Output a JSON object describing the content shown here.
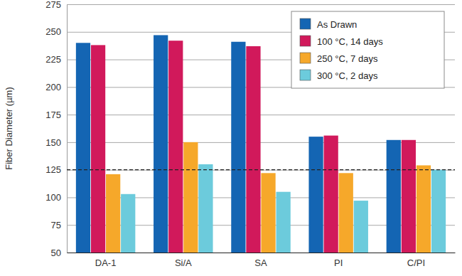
{
  "chart_data": {
    "type": "bar",
    "y_label": "Fiber Diameter (µm)",
    "categories": [
      "DA-1",
      "Si/A",
      "SA",
      "PI",
      "C/PI"
    ],
    "series": [
      {
        "name": "As Drawn",
        "color": "#1465b3",
        "values": [
          240,
          247,
          241,
          155,
          152
        ]
      },
      {
        "name": "100 °C, 14 days",
        "color": "#d1195b",
        "values": [
          238,
          242,
          237,
          156,
          152
        ]
      },
      {
        "name": "250 °C, 7 days",
        "color": "#f6a82a",
        "values": [
          121,
          150,
          122,
          122,
          129
        ]
      },
      {
        "name": "300 °C, 2 days",
        "color": "#6ccbdc",
        "values": [
          103,
          130,
          105,
          97,
          125
        ]
      }
    ],
    "ylim": [
      50,
      275
    ],
    "yticks": [
      50,
      75,
      100,
      125,
      150,
      175,
      200,
      225,
      250,
      275
    ],
    "grid": true,
    "legend": "upper right",
    "reference_line": {
      "value": 125,
      "line_style": "dashed"
    }
  }
}
